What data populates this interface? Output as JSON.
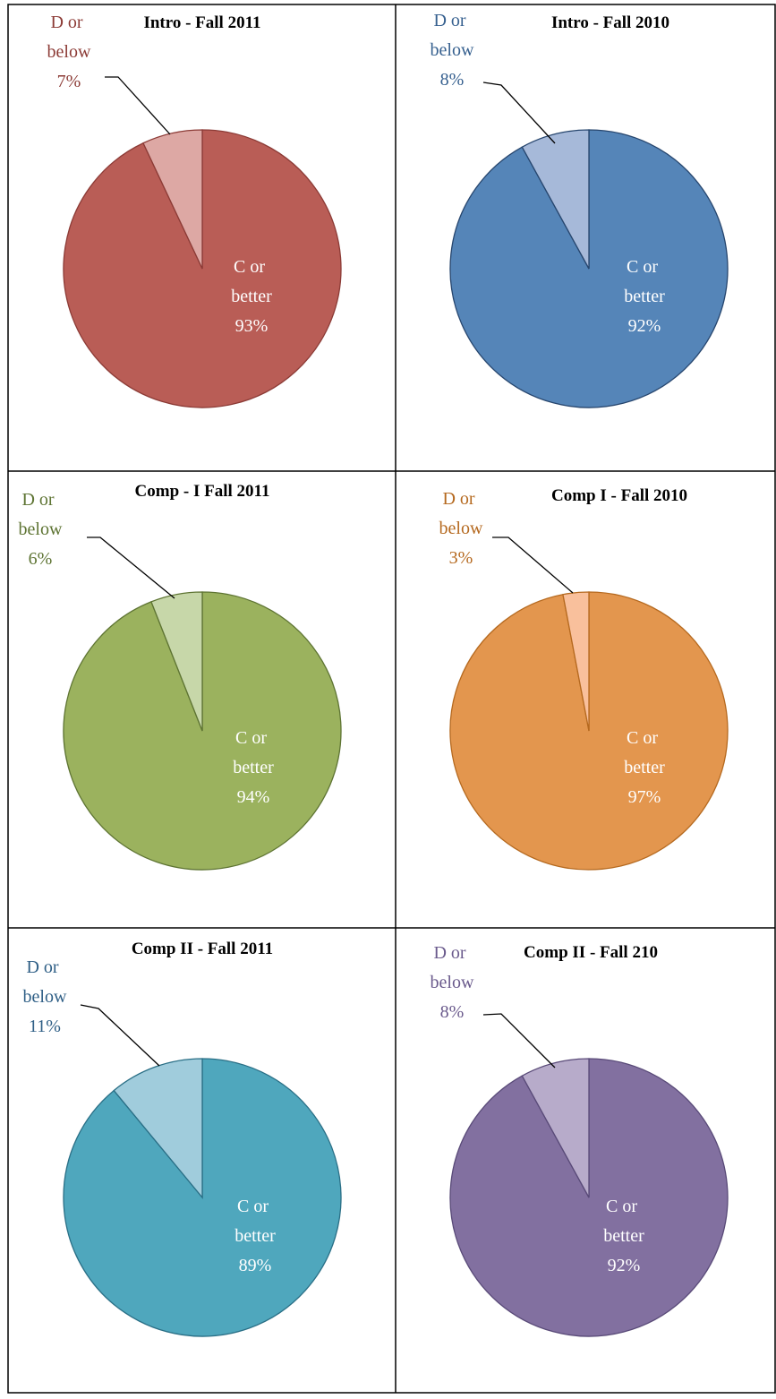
{
  "chart_data": [
    {
      "type": "pie",
      "title": "Intro - Fall 2011",
      "categories": [
        "C or better",
        "D or below"
      ],
      "values": [
        93,
        7
      ],
      "value_labels": [
        "93%",
        "7%"
      ],
      "colors": [
        "#b95d56",
        "#dda8a4"
      ],
      "edge_color": "#8c3b36",
      "label_colors": [
        "#ffffff",
        "#8c3b36"
      ]
    },
    {
      "type": "pie",
      "title": "Intro - Fall 2010",
      "categories": [
        "C or better",
        "D or below"
      ],
      "values": [
        92,
        8
      ],
      "value_labels": [
        "92%",
        "8%"
      ],
      "colors": [
        "#5585b8",
        "#a6b9d9"
      ],
      "edge_color": "#27466e",
      "label_colors": [
        "#ffffff",
        "#36608f"
      ]
    },
    {
      "type": "pie",
      "title": "Comp - I Fall 2011",
      "categories": [
        "C or better",
        "D or below"
      ],
      "values": [
        94,
        6
      ],
      "value_labels": [
        "94%",
        "6%"
      ],
      "colors": [
        "#9bb25e",
        "#c7d7a9"
      ],
      "edge_color": "#5e7433",
      "label_colors": [
        "#ffffff",
        "#5e7433"
      ]
    },
    {
      "type": "pie",
      "title": "Comp I - Fall 2010",
      "categories": [
        "C or better",
        "D or below"
      ],
      "values": [
        97,
        3
      ],
      "value_labels": [
        "97%",
        "3%"
      ],
      "colors": [
        "#e3964e",
        "#f9c09c"
      ],
      "edge_color": "#b5691f",
      "label_colors": [
        "#ffffff",
        "#b5691f"
      ]
    },
    {
      "type": "pie",
      "title": "Comp II - Fall  2011",
      "categories": [
        "C or better",
        "D or below"
      ],
      "values": [
        89,
        11
      ],
      "value_labels": [
        "89%",
        "11%"
      ],
      "colors": [
        "#4fa7bd",
        "#a0ccdc"
      ],
      "edge_color": "#2a6f86",
      "label_colors": [
        "#ffffff",
        "#2f5f86"
      ]
    },
    {
      "type": "pie",
      "title": "Comp II - Fall 210",
      "categories": [
        "C or better",
        "D or below"
      ],
      "values": [
        92,
        8
      ],
      "value_labels": [
        "92%",
        "8%"
      ],
      "colors": [
        "#8270a0",
        "#b7abca"
      ],
      "edge_color": "#594a78",
      "label_colors": [
        "#ffffff",
        "#6a5a8c"
      ]
    }
  ]
}
